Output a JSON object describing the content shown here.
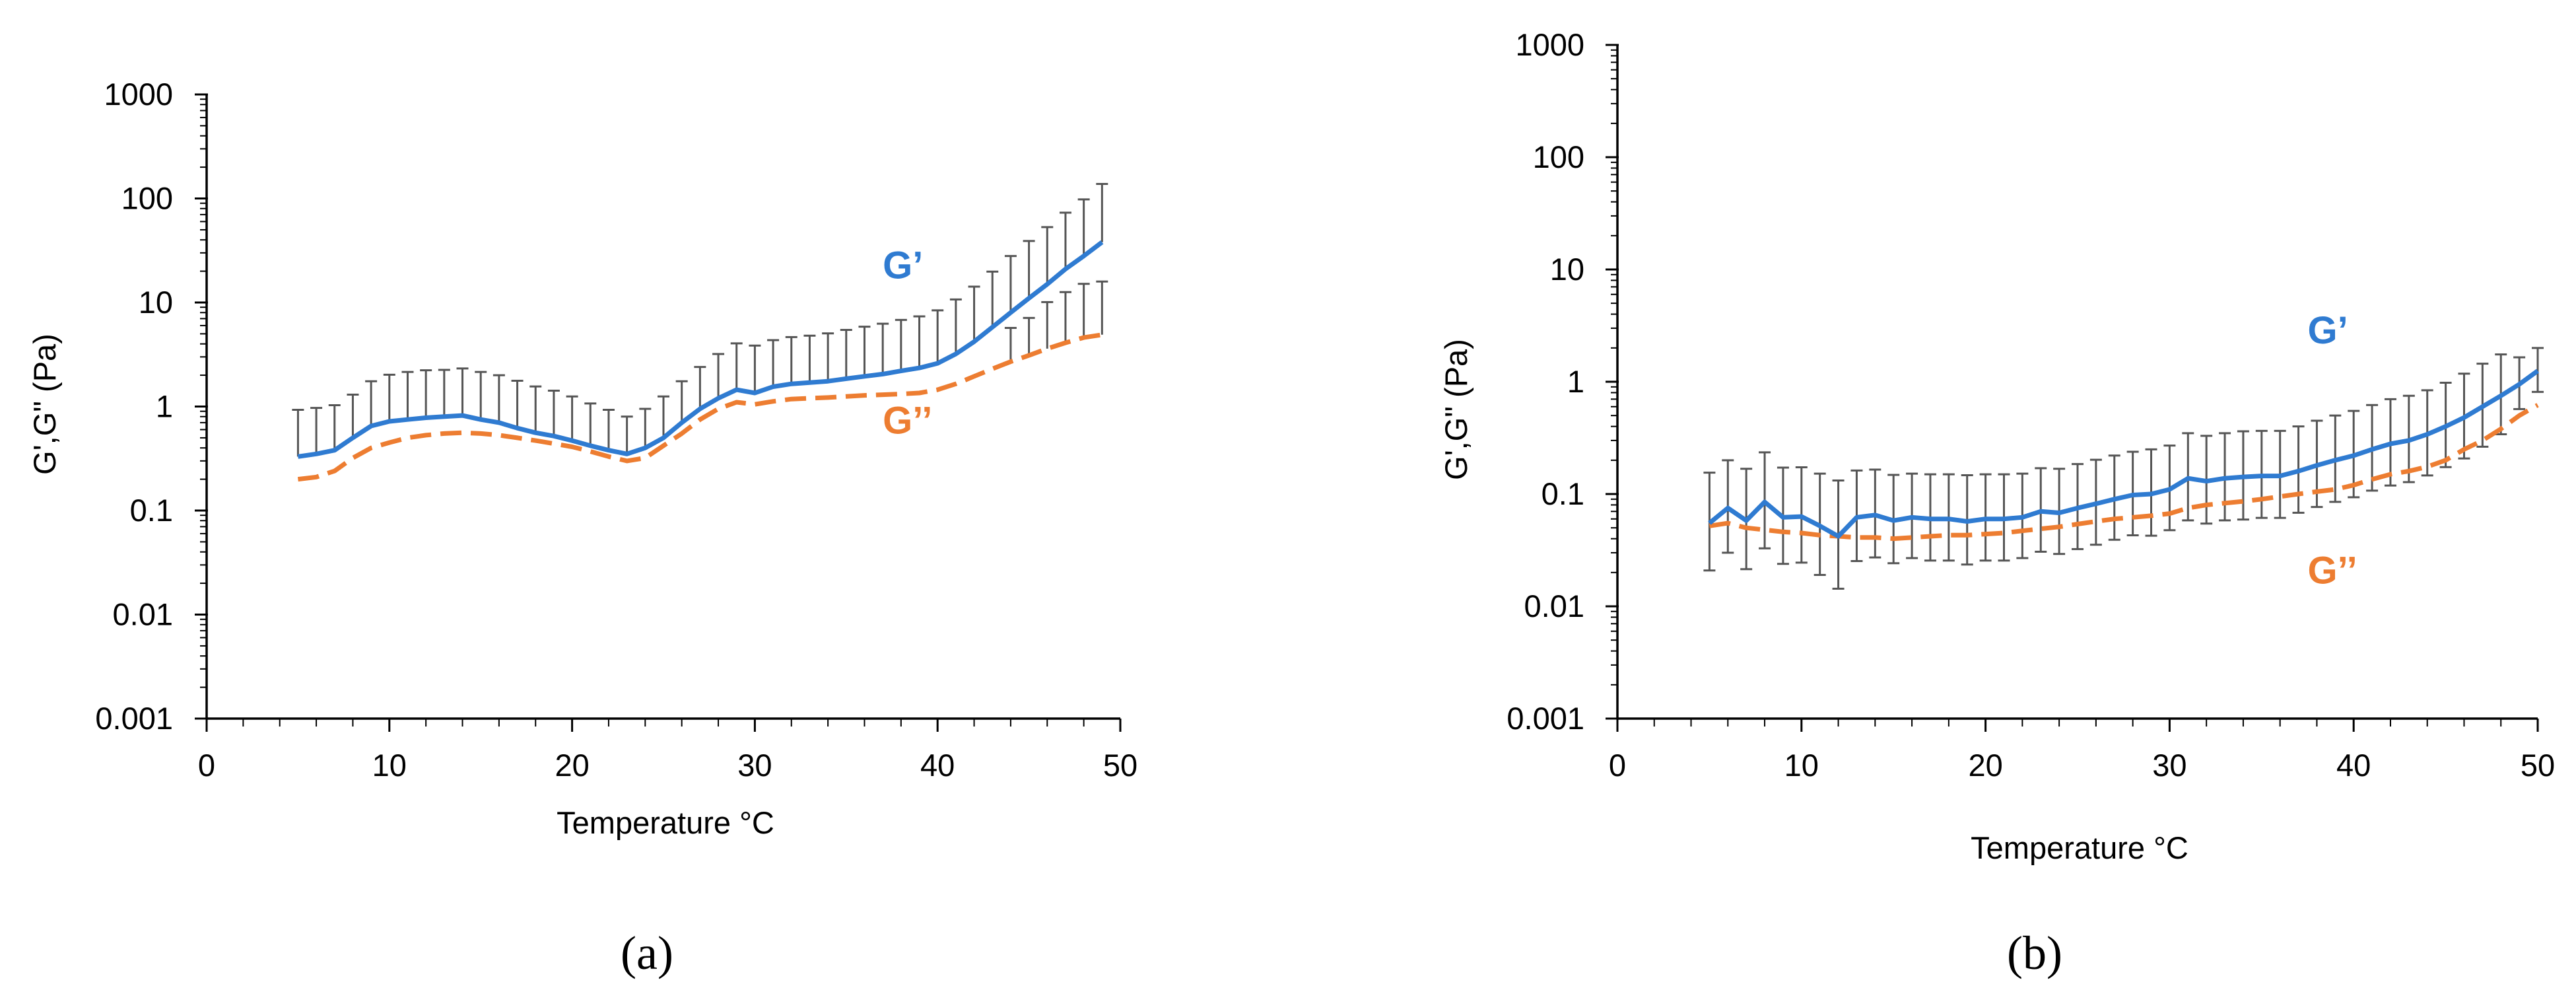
{
  "colors": {
    "g_prime": "#2f7bd1",
    "g_double": "#ed7d31",
    "error_bar": "#555555",
    "axis": "#000000"
  },
  "chart_data": [
    {
      "type": "line",
      "panel_label": "(a)",
      "title": "",
      "xlabel": "Temperature °C",
      "ylabel": "G',G\" (Pa)",
      "xlim": [
        0,
        50
      ],
      "ylim": [
        0.001,
        1000
      ],
      "y_scale": "log",
      "x_ticks": [
        0,
        10,
        20,
        30,
        40,
        50
      ],
      "y_ticks": [
        0.001,
        0.01,
        0.1,
        1,
        10,
        100,
        1000
      ],
      "y_tick_labels": [
        "0.001",
        "0.01",
        "0.1",
        "1",
        "10",
        "100",
        "1000"
      ],
      "x_tick_labels": [
        "0",
        "10",
        "20",
        "30",
        "40",
        "50"
      ],
      "annotations": [
        {
          "text": "G’",
          "series": "G'",
          "x": 37,
          "y": 17
        },
        {
          "text": "G’’",
          "series": "G''",
          "x": 37,
          "y": 0.55
        }
      ],
      "series": [
        {
          "name": "G'",
          "style": "solid",
          "x": [
            5,
            6,
            7,
            8,
            9,
            10,
            11,
            12,
            13,
            14,
            15,
            16,
            17,
            18,
            19,
            20,
            21,
            22,
            23,
            24,
            25,
            26,
            27,
            28,
            29,
            30,
            31,
            32,
            33,
            34,
            35,
            36,
            37,
            38,
            39,
            40,
            41,
            42,
            43,
            44,
            45,
            46,
            47,
            48,
            49
          ],
          "values": [
            0.33,
            0.35,
            0.38,
            0.5,
            0.65,
            0.72,
            0.75,
            0.78,
            0.8,
            0.82,
            0.75,
            0.7,
            0.62,
            0.56,
            0.52,
            0.47,
            0.42,
            0.38,
            0.35,
            0.4,
            0.5,
            0.7,
            0.95,
            1.2,
            1.45,
            1.35,
            1.55,
            1.65,
            1.7,
            1.75,
            1.85,
            1.95,
            2.05,
            2.2,
            2.35,
            2.6,
            3.2,
            4.2,
            5.8,
            8.0,
            11.0,
            15.0,
            21.0,
            28.0,
            38.0
          ],
          "error": [
            0.6,
            0.62,
            0.65,
            0.8,
            1.1,
            1.3,
            1.4,
            1.45,
            1.45,
            1.5,
            1.4,
            1.3,
            1.15,
            1.0,
            0.9,
            0.78,
            0.65,
            0.55,
            0.45,
            0.55,
            0.75,
            1.05,
            1.45,
            2.0,
            2.6,
            2.5,
            2.8,
            3.0,
            3.1,
            3.3,
            3.6,
            3.9,
            4.2,
            4.6,
            5.0,
            5.8,
            7.5,
            10.0,
            14.0,
            20.0,
            28.0,
            38.0,
            52.0,
            70.0,
            100.0
          ]
        },
        {
          "name": "G''",
          "style": "dashed",
          "x": [
            5,
            6,
            7,
            8,
            9,
            10,
            11,
            12,
            13,
            14,
            15,
            16,
            17,
            18,
            19,
            20,
            21,
            22,
            23,
            24,
            25,
            26,
            27,
            28,
            29,
            30,
            31,
            32,
            33,
            34,
            35,
            36,
            37,
            38,
            39,
            40,
            41,
            42,
            43,
            44,
            45,
            46,
            47,
            48,
            49
          ],
          "values": [
            0.2,
            0.21,
            0.24,
            0.32,
            0.4,
            0.45,
            0.5,
            0.53,
            0.55,
            0.56,
            0.55,
            0.53,
            0.5,
            0.47,
            0.44,
            0.41,
            0.37,
            0.33,
            0.3,
            0.32,
            0.42,
            0.55,
            0.75,
            0.95,
            1.1,
            1.05,
            1.12,
            1.18,
            1.2,
            1.22,
            1.25,
            1.28,
            1.3,
            1.32,
            1.35,
            1.45,
            1.65,
            1.95,
            2.3,
            2.7,
            3.1,
            3.6,
            4.1,
            4.6,
            4.9
          ],
          "error": [
            0.0,
            0.0,
            0.0,
            0.0,
            0.0,
            0.0,
            0.0,
            0.0,
            0.0,
            0.0,
            0.0,
            0.0,
            0.0,
            0.0,
            0.0,
            0.0,
            0.0,
            0.0,
            0.0,
            0.0,
            0.0,
            0.0,
            0.0,
            0.0,
            0.0,
            0.0,
            0.0,
            0.0,
            0.0,
            0.0,
            0.0,
            0.0,
            0.0,
            0.0,
            0.0,
            0.0,
            0.0,
            0.0,
            0.0,
            3.0,
            4.0,
            6.5,
            8.5,
            10.5,
            11.0
          ]
        }
      ]
    },
    {
      "type": "line",
      "panel_label": "(b)",
      "title": "",
      "xlabel": "Temperature °C",
      "ylabel": "G',G\" (Pa)",
      "xlim": [
        0,
        50
      ],
      "ylim": [
        0.001,
        1000
      ],
      "y_scale": "log",
      "x_ticks": [
        0,
        10,
        20,
        30,
        40,
        50
      ],
      "y_ticks": [
        0.001,
        0.01,
        0.1,
        1,
        10,
        100,
        1000
      ],
      "y_tick_labels": [
        "0.001",
        "0.01",
        "0.1",
        "1",
        "10",
        "100",
        "1000"
      ],
      "x_tick_labels": [
        "0",
        "10",
        "20",
        "30",
        "40",
        "50"
      ],
      "annotations": [
        {
          "text": "G’",
          "series": "G'",
          "x": 37.5,
          "y": 2.2
        },
        {
          "text": "G’’",
          "series": "G''",
          "x": 37.5,
          "y": 0.016
        }
      ],
      "series": [
        {
          "name": "G'",
          "style": "solid",
          "x": [
            5,
            6,
            7,
            8,
            9,
            10,
            11,
            12,
            13,
            14,
            15,
            16,
            17,
            18,
            19,
            20,
            21,
            22,
            23,
            24,
            25,
            26,
            27,
            28,
            29,
            30,
            31,
            32,
            33,
            34,
            35,
            36,
            37,
            38,
            39,
            40,
            41,
            42,
            43,
            44,
            45,
            46,
            47,
            48,
            49,
            50
          ],
          "values": [
            0.055,
            0.075,
            0.058,
            0.085,
            0.062,
            0.063,
            0.052,
            0.042,
            0.062,
            0.065,
            0.058,
            0.062,
            0.06,
            0.06,
            0.057,
            0.06,
            0.06,
            0.062,
            0.07,
            0.068,
            0.075,
            0.082,
            0.09,
            0.098,
            0.1,
            0.11,
            0.138,
            0.13,
            0.138,
            0.142,
            0.145,
            0.145,
            0.16,
            0.18,
            0.2,
            0.22,
            0.25,
            0.28,
            0.3,
            0.34,
            0.4,
            0.48,
            0.6,
            0.75,
            0.95,
            1.25
          ],
          "error": [
            0.1,
            0.125,
            0.11,
            0.15,
            0.11,
            0.11,
            0.1,
            0.09,
            0.1,
            0.1,
            0.09,
            0.09,
            0.09,
            0.09,
            0.09,
            0.09,
            0.09,
            0.09,
            0.1,
            0.1,
            0.11,
            0.12,
            0.13,
            0.14,
            0.15,
            0.16,
            0.21,
            0.2,
            0.21,
            0.22,
            0.22,
            0.22,
            0.24,
            0.27,
            0.3,
            0.33,
            0.37,
            0.42,
            0.45,
            0.5,
            0.58,
            0.7,
            0.85,
            1.0,
            0.7,
            0.75
          ]
        },
        {
          "name": "G''",
          "style": "dashed",
          "x": [
            5,
            6,
            7,
            8,
            9,
            10,
            11,
            12,
            13,
            14,
            15,
            16,
            17,
            18,
            19,
            20,
            21,
            22,
            23,
            24,
            25,
            26,
            27,
            28,
            29,
            30,
            31,
            32,
            33,
            34,
            35,
            36,
            37,
            38,
            39,
            40,
            41,
            42,
            43,
            44,
            45,
            46,
            47,
            48,
            49,
            50
          ],
          "values": [
            0.052,
            0.055,
            0.05,
            0.048,
            0.046,
            0.045,
            0.043,
            0.042,
            0.041,
            0.041,
            0.04,
            0.041,
            0.042,
            0.043,
            0.043,
            0.044,
            0.045,
            0.047,
            0.049,
            0.051,
            0.054,
            0.057,
            0.06,
            0.062,
            0.064,
            0.067,
            0.075,
            0.08,
            0.083,
            0.086,
            0.09,
            0.095,
            0.1,
            0.105,
            0.11,
            0.12,
            0.135,
            0.15,
            0.16,
            0.175,
            0.2,
            0.25,
            0.3,
            0.38,
            0.5,
            0.62
          ],
          "error": [
            0.0,
            0.0,
            0.0,
            0.0,
            0.0,
            0.0,
            0.0,
            0.0,
            0.0,
            0.0,
            0.0,
            0.0,
            0.0,
            0.0,
            0.0,
            0.0,
            0.0,
            0.0,
            0.0,
            0.0,
            0.0,
            0.0,
            0.0,
            0.0,
            0.0,
            0.0,
            0.0,
            0.0,
            0.0,
            0.0,
            0.0,
            0.0,
            0.0,
            0.0,
            0.0,
            0.0,
            0.0,
            0.0,
            0.0,
            0.0,
            0.0,
            0.0,
            0.0,
            0.0,
            0.0,
            0.0
          ]
        }
      ]
    }
  ]
}
